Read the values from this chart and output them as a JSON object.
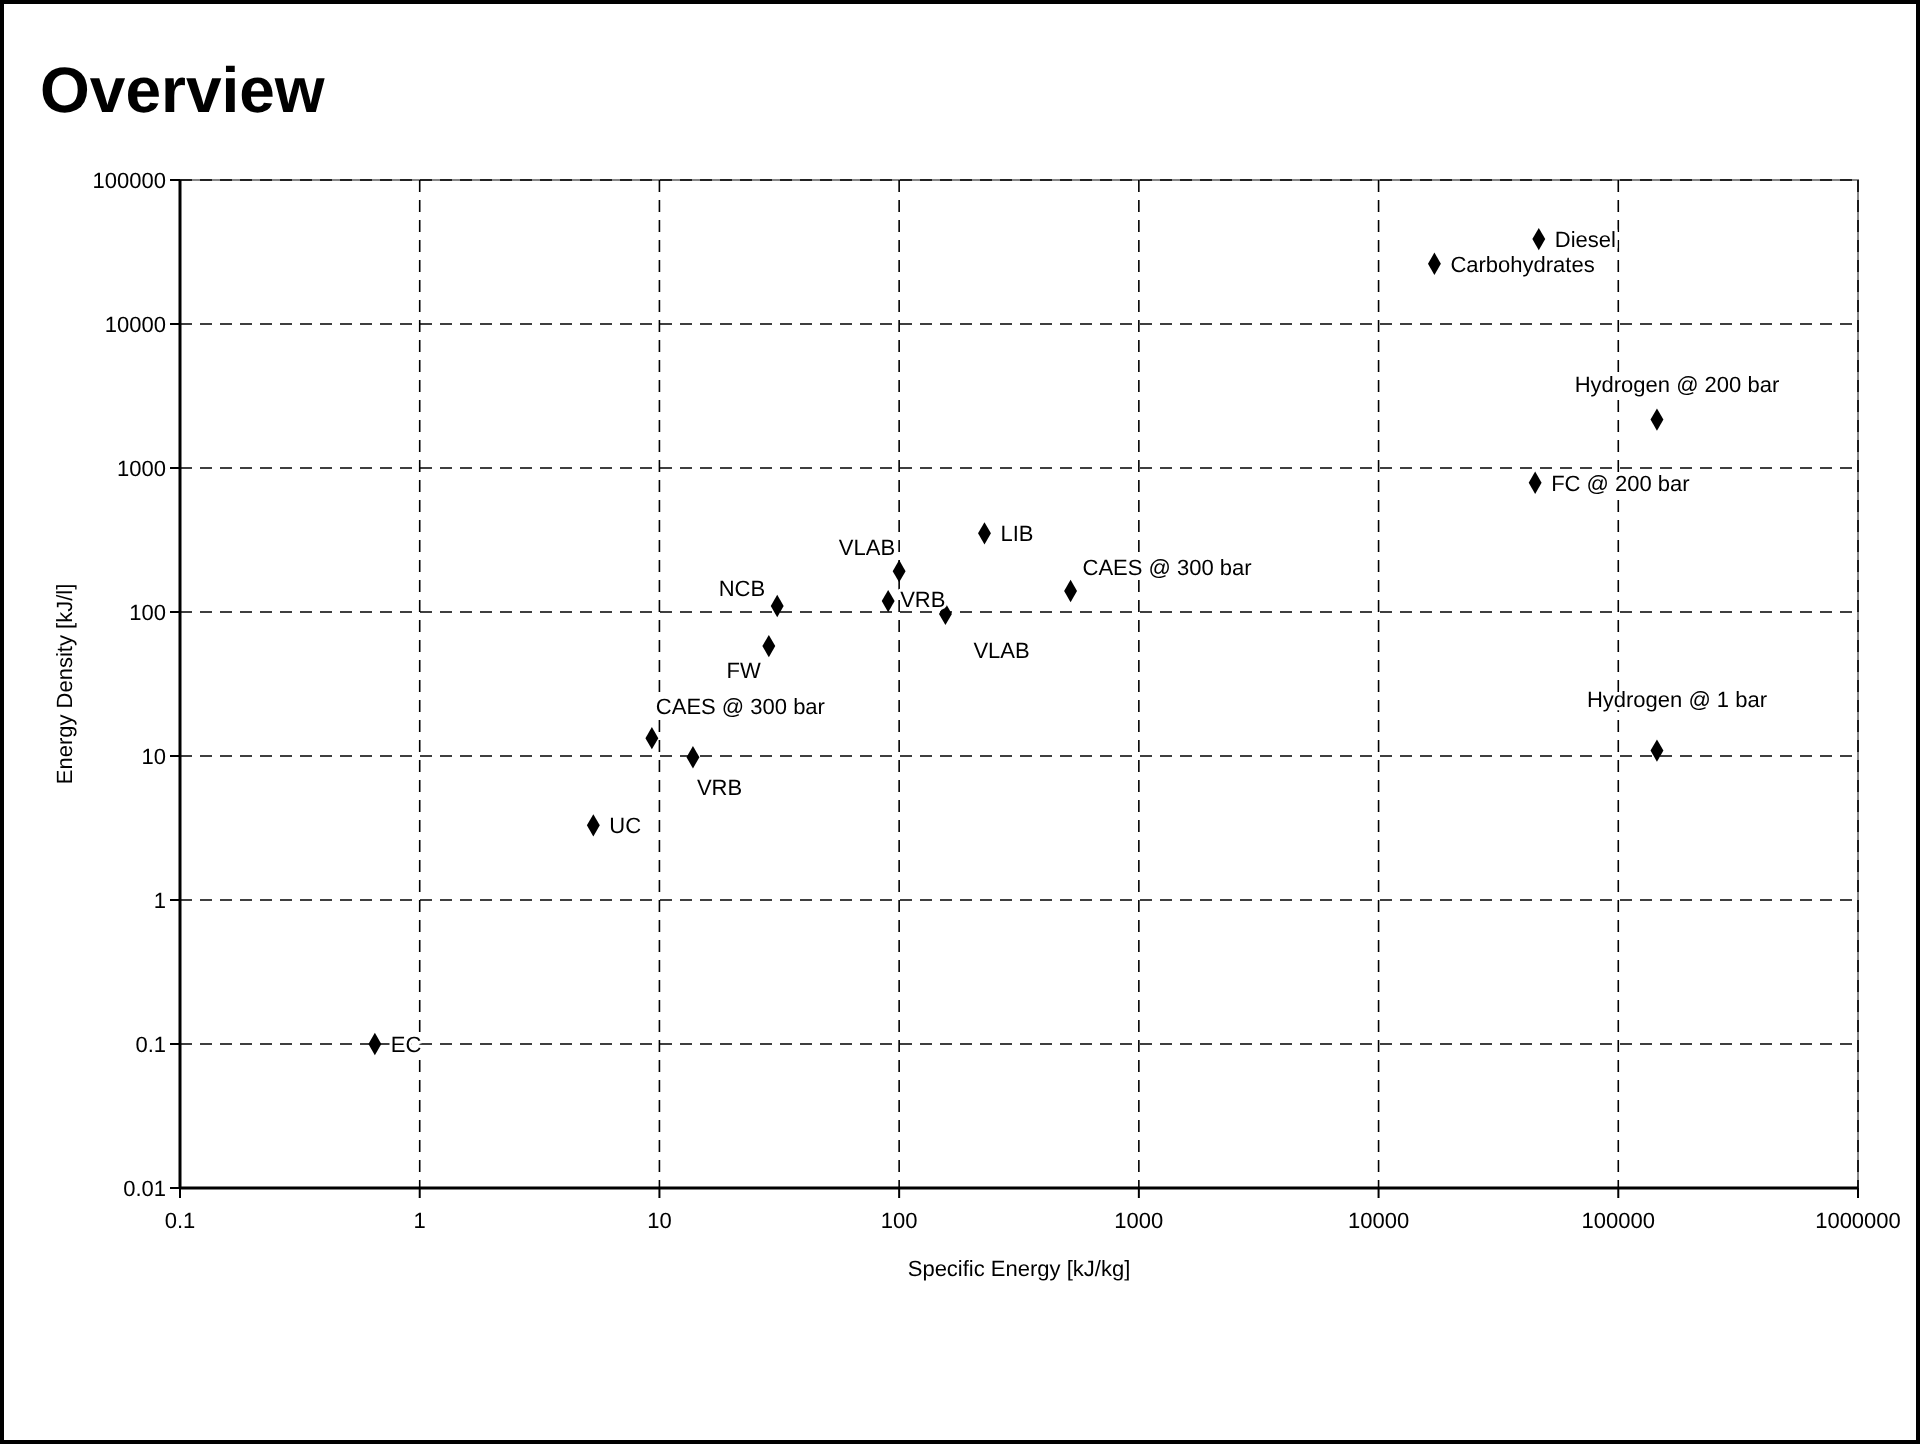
{
  "chart_data": {
    "type": "scatter",
    "title": "Overview",
    "xlabel": "Specific Energy [kJ/kg]",
    "ylabel": "Energy Density [kJ/l]",
    "log": "xy",
    "xlim": [
      0.1,
      1000000
    ],
    "ylim": [
      0.01,
      100000
    ],
    "xticks": [
      0.1,
      1,
      10,
      100,
      1000,
      10000,
      100000,
      1000000
    ],
    "yticks": [
      0.01,
      0.1,
      1,
      10,
      100,
      1000,
      10000,
      100000
    ],
    "grid": true,
    "marker": "diamond",
    "series": [
      {
        "color": "#000000",
        "x": [
          31,
          28.6,
          100,
          90,
          227,
          156,
          519,
          9.3,
          13.8,
          46600,
          17100,
          145000,
          45000,
          145000,
          5.3,
          0.65
        ],
        "values": [
          110,
          58,
          192,
          119,
          352,
          97,
          140,
          13.3,
          9.8,
          38900,
          26200,
          2170,
          790,
          10.9,
          3.3,
          0.1
        ]
      }
    ],
    "annotations": [
      {
        "text": "NCB",
        "x": 31,
        "y": 110
      },
      {
        "text": "FW",
        "x": 28.6,
        "y": 58
      },
      {
        "text": "VLAB",
        "x": 100,
        "y": 192
      },
      {
        "text": "VRB",
        "x": 90,
        "y": 119
      },
      {
        "text": "LIB",
        "x": 227,
        "y": 352
      },
      {
        "text": "VLAB",
        "x": 156,
        "y": 97
      },
      {
        "text": "CAES @ 300 bar",
        "x": 519,
        "y": 140
      },
      {
        "text": "CAES @ 300 bar",
        "x": 9.3,
        "y": 13.3
      },
      {
        "text": "VRB",
        "x": 13.8,
        "y": 9.8
      },
      {
        "text": "Diesel",
        "x": 46600,
        "y": 38900
      },
      {
        "text": "Carbohydrates",
        "x": 17100,
        "y": 26200
      },
      {
        "text": "Hydrogen @ 200 bar",
        "x": 145000,
        "y": 2170
      },
      {
        "text": "FC @ 200 bar",
        "x": 45000,
        "y": 790
      },
      {
        "text": "Hydrogen @ 1 bar",
        "x": 145000,
        "y": 10.9
      },
      {
        "text": "UC",
        "x": 5.3,
        "y": 3.3
      },
      {
        "text": "EC",
        "x": 0.65,
        "y": 0.1
      }
    ]
  }
}
